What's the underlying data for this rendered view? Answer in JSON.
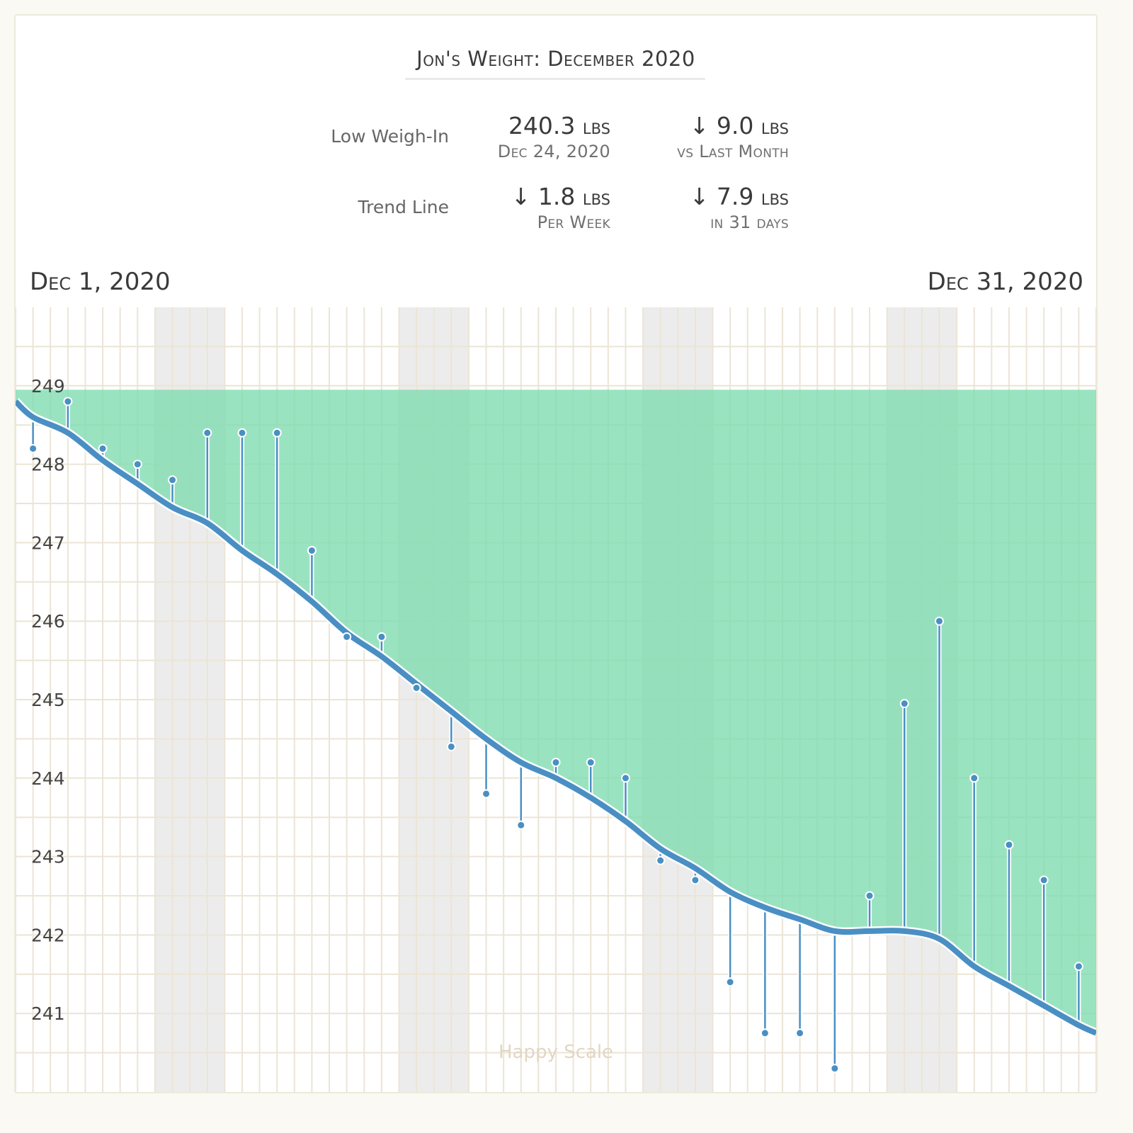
{
  "title": "Jon's Weight: December 2020",
  "stats": {
    "low_weigh_in": {
      "label": "Low Weigh-In",
      "value": "240.3",
      "unit": "lbs",
      "date": "Dec 24, 2020",
      "change": "↓ 9.0",
      "change_unit": "lbs",
      "change_sub": "vs Last Month"
    },
    "trend_line": {
      "label": "Trend Line",
      "rate": "↓ 1.8",
      "rate_unit": "lbs",
      "rate_sub": "Per Week",
      "total": "↓ 7.9",
      "total_unit": "lbs",
      "total_sub": "in 31 days"
    }
  },
  "date_range": {
    "start_month": "Dec",
    "start_rest": " 1, 2020",
    "end_month": "Dec",
    "end_rest": " 31, 2020"
  },
  "watermark": "Happy Scale",
  "colors": {
    "trend": "#4a8fc4",
    "goal_band": "#7ddbb0",
    "weekend": "#ececec",
    "grid": "#ebe5d6"
  },
  "chart_data": {
    "type": "line",
    "title": "Jon's Weight: December 2020",
    "xlabel": "",
    "ylabel": "",
    "x_range": [
      0.5,
      31.5
    ],
    "ylim": [
      240.0,
      250.0
    ],
    "y_ticks": [
      241,
      242,
      243,
      244,
      245,
      246,
      247,
      248,
      249
    ],
    "goal_band_top": 248.95,
    "weekend_day_pairs": [
      [
        5,
        6
      ],
      [
        12,
        13
      ],
      [
        19,
        20
      ],
      [
        26,
        27
      ]
    ],
    "series": [
      {
        "name": "Weigh-ins",
        "x": [
          1,
          2,
          3,
          4,
          5,
          6,
          7,
          8,
          9,
          10,
          11,
          12,
          13,
          14,
          15,
          16,
          17,
          18,
          19,
          20,
          21,
          22,
          23,
          24,
          25,
          26,
          27,
          28,
          29,
          30,
          31
        ],
        "values": [
          248.2,
          248.8,
          248.2,
          248.0,
          247.8,
          248.4,
          248.4,
          248.4,
          246.9,
          245.8,
          245.8,
          245.15,
          244.4,
          243.8,
          243.4,
          244.2,
          244.2,
          244.0,
          242.95,
          242.7,
          241.4,
          240.75,
          240.75,
          240.3,
          242.5,
          244.95,
          246.0,
          244.0,
          243.15,
          242.7,
          241.6
        ]
      },
      {
        "name": "Trend",
        "x": [
          0.5,
          1,
          2,
          3,
          4,
          5,
          6,
          7,
          8,
          9,
          10,
          11,
          12,
          13,
          14,
          15,
          16,
          17,
          18,
          19,
          20,
          21,
          22,
          23,
          24,
          25,
          26,
          27,
          28,
          29,
          30,
          31,
          31.5
        ],
        "values": [
          248.8,
          248.6,
          248.4,
          248.05,
          247.75,
          247.45,
          247.25,
          246.9,
          246.6,
          246.25,
          245.85,
          245.55,
          245.2,
          244.85,
          244.5,
          244.2,
          244.0,
          243.75,
          243.45,
          243.1,
          242.85,
          242.55,
          242.35,
          242.2,
          242.05,
          242.05,
          242.05,
          241.95,
          241.6,
          241.35,
          241.1,
          240.85,
          240.75
        ]
      }
    ]
  }
}
